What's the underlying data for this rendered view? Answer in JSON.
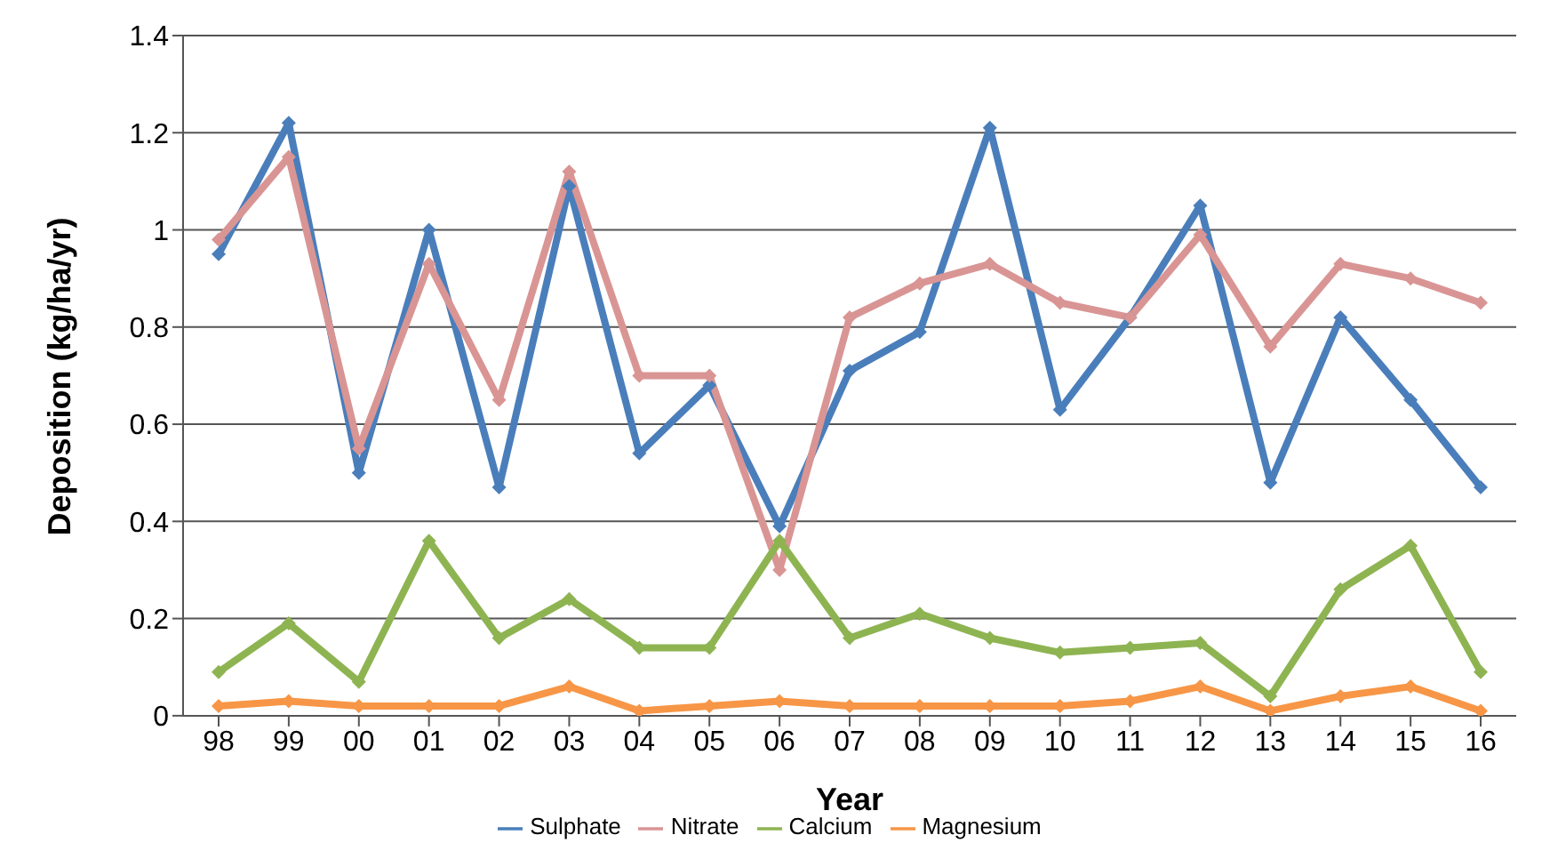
{
  "chart_data": {
    "type": "line",
    "xlabel": "Year",
    "ylabel": "Deposition (kg/ha/yr)",
    "categories": [
      "98",
      "99",
      "00",
      "01",
      "02",
      "03",
      "04",
      "05",
      "06",
      "07",
      "08",
      "09",
      "10",
      "11",
      "12",
      "13",
      "14",
      "15",
      "16"
    ],
    "series": [
      {
        "name": "Sulphate",
        "color": "#4a7ebb",
        "values": [
          0.95,
          1.22,
          0.5,
          1.0,
          0.47,
          1.09,
          0.54,
          0.68,
          0.39,
          0.71,
          0.79,
          1.21,
          0.63,
          0.82,
          1.05,
          0.48,
          0.82,
          0.65,
          0.47
        ]
      },
      {
        "name": "Nitrate",
        "color": "#d99594",
        "values": [
          0.98,
          1.15,
          0.55,
          0.93,
          0.65,
          1.12,
          0.7,
          0.7,
          0.3,
          0.82,
          0.89,
          0.93,
          0.85,
          0.82,
          0.99,
          0.76,
          0.93,
          0.9,
          0.85
        ]
      },
      {
        "name": "Calcium",
        "color": "#8eb452",
        "values": [
          0.09,
          0.19,
          0.07,
          0.36,
          0.16,
          0.24,
          0.14,
          0.14,
          0.36,
          0.16,
          0.21,
          0.16,
          0.13,
          0.14,
          0.15,
          0.04,
          0.26,
          0.35,
          0.09
        ]
      },
      {
        "name": "Magnesium",
        "color": "#f79646",
        "values": [
          0.02,
          0.03,
          0.02,
          0.02,
          0.02,
          0.06,
          0.01,
          0.02,
          0.03,
          0.02,
          0.02,
          0.02,
          0.02,
          0.03,
          0.06,
          0.01,
          0.04,
          0.06,
          0.01
        ]
      }
    ],
    "ylim": [
      0,
      1.4
    ],
    "yticks": [
      0,
      0.2,
      0.4,
      0.6,
      0.8,
      1,
      1.2,
      1.4
    ],
    "grid": "y",
    "legend": "bottom",
    "marker": "diamond",
    "line_style": "solid"
  }
}
